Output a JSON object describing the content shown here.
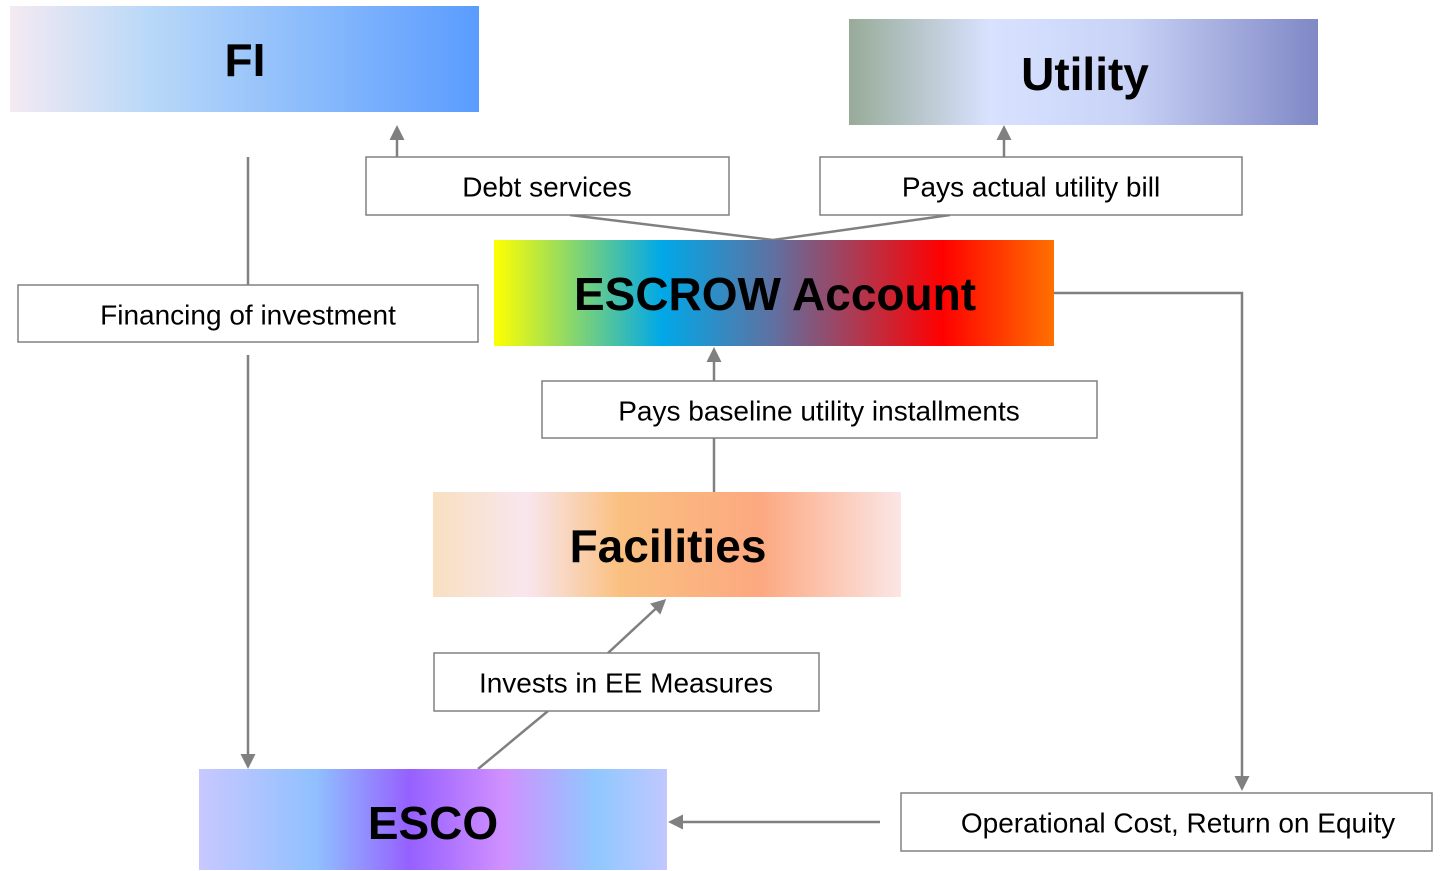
{
  "nodes": [
    {
      "label": "FI"
    },
    {
      "label": "Utility"
    },
    {
      "label": "ESCROW Account"
    },
    {
      "label": "Facilities"
    },
    {
      "label": "ESCO"
    }
  ],
  "flows": [
    {
      "label": "Debt services"
    },
    {
      "label": "Pays actual utility bill"
    },
    {
      "label": "Financing of investment"
    },
    {
      "label": "Pays baseline utility installments"
    },
    {
      "label": "Invests in EE Measures"
    },
    {
      "label": "Operational Cost, Return on Equity"
    }
  ]
}
